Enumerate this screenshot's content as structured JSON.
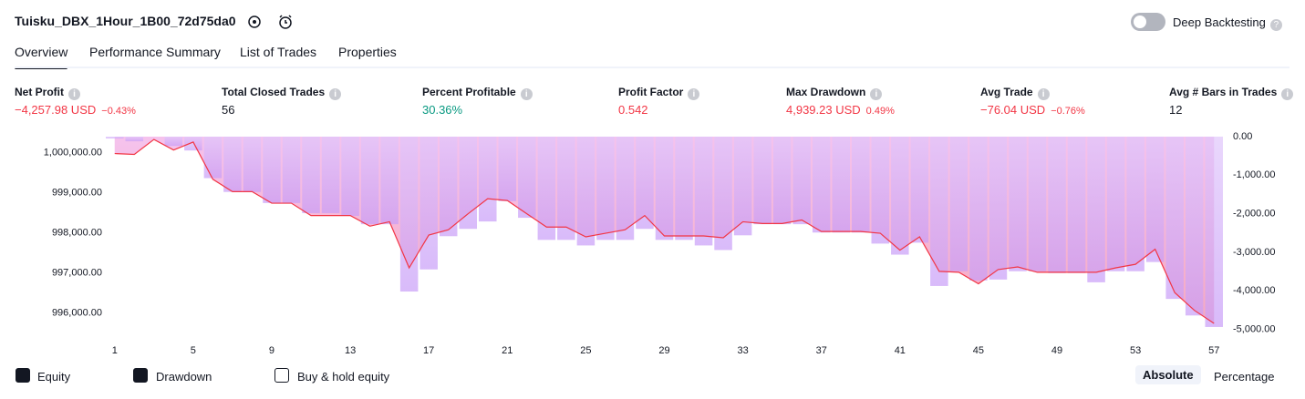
{
  "header": {
    "title": "Tuisku_DBX_1Hour_1B00_72d75da0",
    "toggle_label": "Deep Backtesting"
  },
  "tabs": [
    "Overview",
    "Performance Summary",
    "List of Trades",
    "Properties"
  ],
  "metrics": [
    {
      "label": "Net Profit",
      "value": "−4,257.98 USD",
      "change": "−0.43%",
      "color": "#f23645"
    },
    {
      "label": "Total Closed Trades",
      "value": "56",
      "color": "#131722"
    },
    {
      "label": "Percent Profitable",
      "value": "30.36%",
      "color": "#089981"
    },
    {
      "label": "Profit Factor",
      "value": "0.542",
      "color": "#f23645"
    },
    {
      "label": "Max Drawdown",
      "value": "4,939.23 USD",
      "change": "0.49%",
      "color": "#f23645"
    },
    {
      "label": "Avg Trade",
      "value": "−76.04 USD",
      "change": "−0.76%",
      "color": "#f23645"
    },
    {
      "label": "Avg # Bars in Trades",
      "value": "12",
      "color": "#131722"
    }
  ],
  "chart_data": {
    "type": "combo",
    "x": [
      1,
      2,
      3,
      4,
      5,
      6,
      7,
      8,
      9,
      10,
      11,
      12,
      13,
      14,
      15,
      16,
      17,
      18,
      19,
      20,
      21,
      22,
      23,
      24,
      25,
      26,
      27,
      28,
      29,
      30,
      31,
      32,
      33,
      34,
      35,
      36,
      37,
      38,
      39,
      40,
      41,
      42,
      43,
      44,
      45,
      46,
      47,
      48,
      49,
      50,
      51,
      52,
      53,
      54,
      55,
      56,
      57
    ],
    "xlim": [
      0.5,
      57.5
    ],
    "xticks": [
      1,
      5,
      9,
      13,
      17,
      21,
      25,
      29,
      33,
      37,
      41,
      45,
      49,
      53,
      57
    ],
    "ylim": [
      995400,
      1000400
    ],
    "yticks": [
      {
        "value": 1000000,
        "label": "1,000,000.00"
      },
      {
        "value": 999000,
        "label": "999,000.00"
      },
      {
        "value": 998000,
        "label": "998,000.00"
      },
      {
        "value": 997000,
        "label": "997,000.00"
      },
      {
        "value": 996000,
        "label": "996,000.00"
      }
    ],
    "y2lim": [
      -5200,
      0
    ],
    "y2ticks": [
      {
        "value": 0,
        "label": "0.00"
      },
      {
        "value": -1000,
        "label": "-1,000.00"
      },
      {
        "value": -2000,
        "label": "-2,000.00"
      },
      {
        "value": -3000,
        "label": "-3,000.00"
      },
      {
        "value": -4000,
        "label": "-4,000.00"
      },
      {
        "value": -5000,
        "label": "-5,000.00"
      }
    ],
    "series": [
      {
        "name": "Equity",
        "type": "line",
        "color": "#f23645",
        "values": [
          999978,
          999956,
          1000330,
          1000066,
          1000265,
          999337,
          999028,
          999028,
          998740,
          998740,
          998431,
          998431,
          998431,
          998166,
          998276,
          997127,
          997945,
          998077,
          998475,
          998851,
          998807,
          998475,
          998144,
          998144,
          997900,
          997989,
          998077,
          998431,
          997923,
          997923,
          997923,
          997878,
          998276,
          998232,
          998232,
          998320,
          998033,
          998033,
          998033,
          997989,
          997569,
          997900,
          997039,
          997016,
          996729,
          997083,
          997149,
          997016,
          997016,
          997016,
          997016,
          997127,
          997215,
          997591,
          996508,
          996066,
          995742
        ]
      },
      {
        "name": "Drawdown",
        "type": "bar",
        "axis": "y2",
        "color": "#d8b8fa",
        "values": [
          -48,
          -120,
          0,
          -240,
          -359,
          -1076,
          -1435,
          -1435,
          -1722,
          -1722,
          -1985,
          -1985,
          -2057,
          -2272,
          -2272,
          -4019,
          -3445,
          -2583,
          -2392,
          -2201,
          -1674,
          -2105,
          -2679,
          -2679,
          -2823,
          -2679,
          -2679,
          -2392,
          -2679,
          -2679,
          -2823,
          -2942,
          -2560,
          -2272,
          -2272,
          -2272,
          -2488,
          -2488,
          -2488,
          -2775,
          -3062,
          -2751,
          -3875,
          -3492,
          -3732,
          -3708,
          -3492,
          -3492,
          -3540,
          -3540,
          -3779,
          -3492,
          -3492,
          -3253,
          -4210,
          -4640,
          -4939
        ]
      }
    ]
  },
  "footer": {
    "buy_hold": "Buy & hold equity",
    "modes": [
      "Absolute",
      "Percentage"
    ]
  }
}
